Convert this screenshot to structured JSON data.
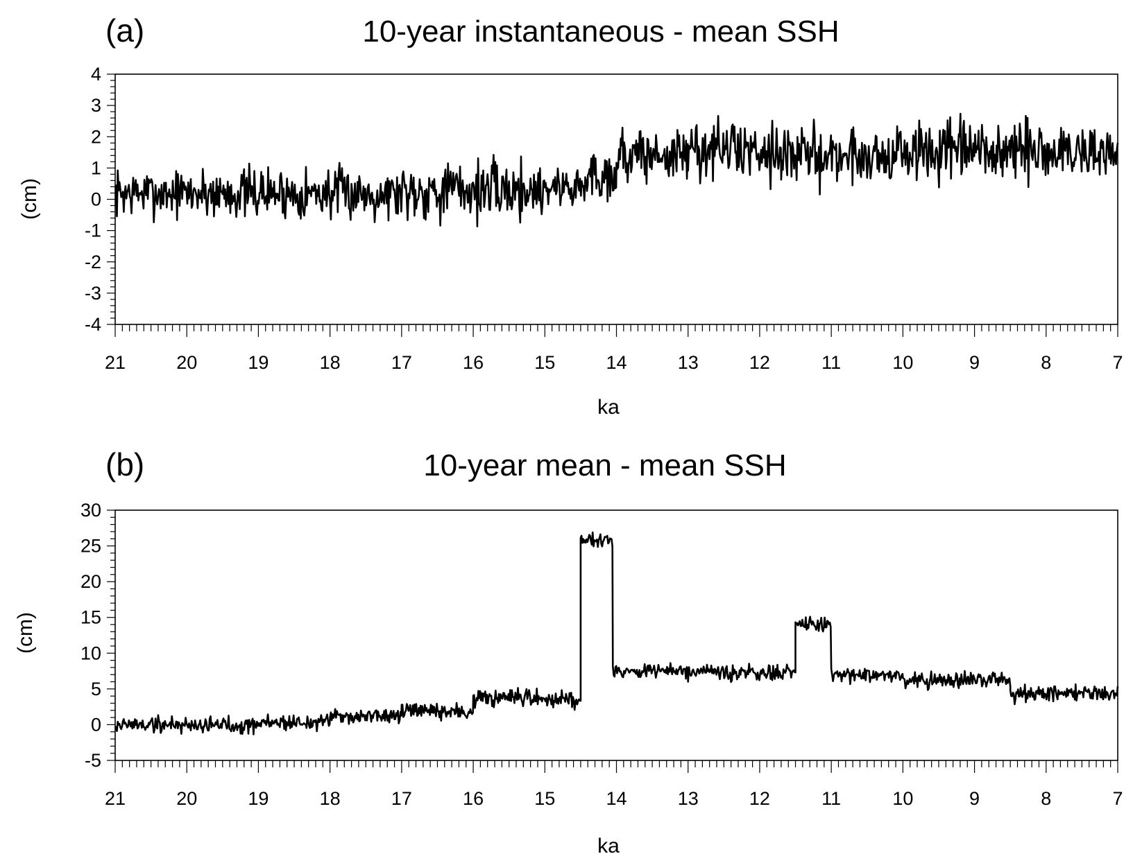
{
  "chart_data": [
    {
      "type": "line",
      "panel": "(a)",
      "title": "10-year instantaneous - mean SSH",
      "xlabel": "ka",
      "ylabel": "(cm)",
      "xlim": [
        21,
        7
      ],
      "ylim": [
        -4,
        4
      ],
      "x_ticks": [
        21,
        20,
        19,
        18,
        17,
        16,
        15,
        14,
        13,
        12,
        11,
        10,
        9,
        8,
        7
      ],
      "y_ticks": [
        -4,
        -3,
        -2,
        -1,
        0,
        1,
        2,
        3,
        4
      ],
      "grid": false,
      "segments": [
        {
          "from": 21.0,
          "to": 19.8,
          "mean": 0.2,
          "amp": 1.1
        },
        {
          "from": 19.8,
          "to": 17.0,
          "mean": 0.2,
          "amp": 1.2
        },
        {
          "from": 17.0,
          "to": 15.0,
          "mean": 0.3,
          "amp": 1.4
        },
        {
          "from": 15.0,
          "to": 14.4,
          "mean": 0.4,
          "amp": 1.0
        },
        {
          "from": 14.4,
          "to": 14.0,
          "mean": 0.8,
          "amp": 1.4
        },
        {
          "from": 14.0,
          "to": 13.0,
          "mean": 1.4,
          "amp": 1.3
        },
        {
          "from": 13.0,
          "to": 11.7,
          "mean": 1.6,
          "amp": 1.4
        },
        {
          "from": 11.7,
          "to": 10.0,
          "mean": 1.4,
          "amp": 1.4
        },
        {
          "from": 10.0,
          "to": 7.0,
          "mean": 1.5,
          "amp": 1.5
        }
      ]
    },
    {
      "type": "line",
      "panel": "(b)",
      "title": "10-year mean - mean SSH",
      "xlabel": "ka",
      "ylabel": "(cm)",
      "xlim": [
        21,
        7
      ],
      "ylim": [
        -5,
        30
      ],
      "x_ticks": [
        21,
        20,
        19,
        18,
        17,
        16,
        15,
        14,
        13,
        12,
        11,
        10,
        9,
        8,
        7
      ],
      "y_ticks": [
        -5,
        0,
        5,
        10,
        15,
        20,
        25,
        30
      ],
      "grid": false,
      "segments": [
        {
          "from": 21.0,
          "to": 19.0,
          "mean": 0.0,
          "amp": 1.8
        },
        {
          "from": 19.0,
          "to": 18.0,
          "mean": 0.3,
          "amp": 1.6
        },
        {
          "from": 18.0,
          "to": 17.0,
          "mean": 1.2,
          "amp": 1.6
        },
        {
          "from": 17.0,
          "to": 16.0,
          "mean": 1.8,
          "amp": 1.8
        },
        {
          "from": 16.0,
          "to": 14.5,
          "mean": 3.6,
          "amp": 1.8
        },
        {
          "from": 14.5,
          "to": 14.05,
          "mean": 26.0,
          "amp": 1.5
        },
        {
          "from": 14.05,
          "to": 13.0,
          "mean": 7.5,
          "amp": 1.6
        },
        {
          "from": 13.0,
          "to": 11.5,
          "mean": 7.2,
          "amp": 1.6
        },
        {
          "from": 11.5,
          "to": 11.0,
          "mean": 14.0,
          "amp": 1.5
        },
        {
          "from": 11.0,
          "to": 10.0,
          "mean": 7.0,
          "amp": 1.6
        },
        {
          "from": 10.0,
          "to": 8.5,
          "mean": 6.2,
          "amp": 1.6
        },
        {
          "from": 8.5,
          "to": 7.0,
          "mean": 4.5,
          "amp": 1.7
        }
      ]
    }
  ]
}
